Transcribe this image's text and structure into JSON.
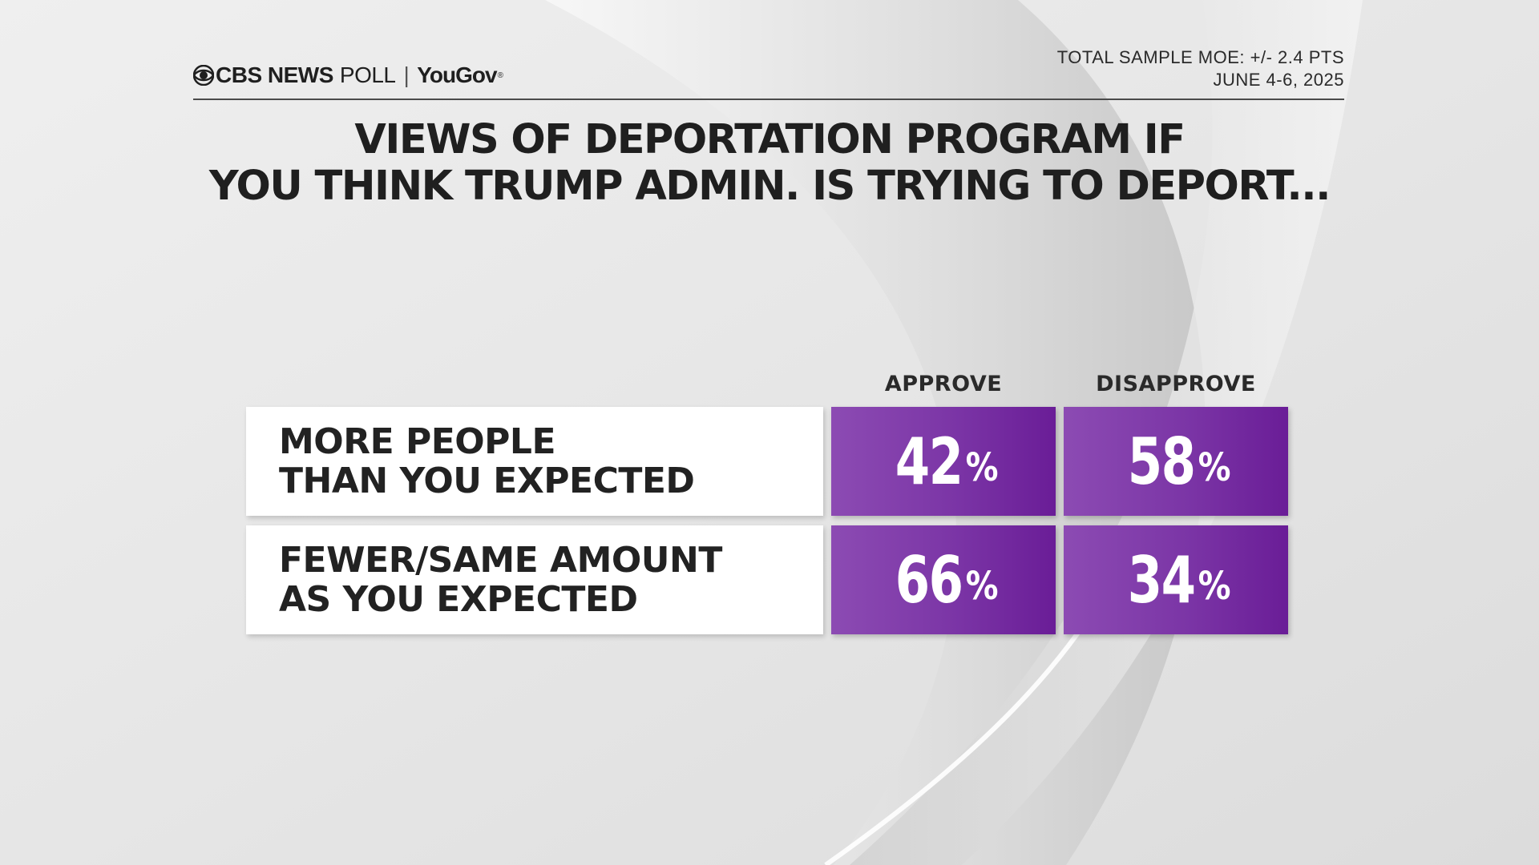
{
  "header": {
    "logo_cbs": "CBS NEWS",
    "logo_poll": "POLL",
    "logo_separator": "|",
    "logo_yougov": "YouGov",
    "logo_registered": "®",
    "sample_moe": "TOTAL SAMPLE MOE: +/- 2.4 PTS",
    "dates": "JUNE 4-6, 2025"
  },
  "colors": {
    "bar_purple": "#7b35a6",
    "text_dark": "#222222",
    "background": "#e9e9e9"
  },
  "chart_data": {
    "type": "table",
    "title_line1": "VIEWS OF DEPORTATION PROGRAM IF",
    "title_line2": "YOU THINK TRUMP ADMIN. IS TRYING TO DEPORT...",
    "columns": [
      "APPROVE",
      "DISAPPROVE"
    ],
    "rows": [
      {
        "label_line1": "MORE PEOPLE",
        "label_line2": "THAN YOU EXPECTED",
        "values": [
          42,
          58
        ]
      },
      {
        "label_line1": "FEWER/SAME AMOUNT",
        "label_line2": "AS YOU EXPECTED",
        "values": [
          66,
          34
        ]
      }
    ],
    "unit": "%"
  }
}
